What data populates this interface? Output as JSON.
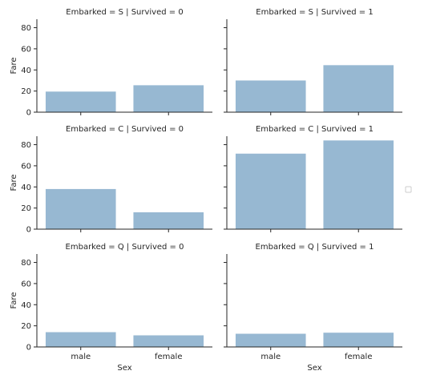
{
  "chart_data": [
    {
      "type": "bar",
      "title": "Embarked = S | Survived = 0",
      "categories": [
        "male",
        "female"
      ],
      "values": [
        19.5,
        25.5
      ],
      "ylabel": "Fare",
      "xlabel": "",
      "ylim": [
        0,
        88
      ],
      "yticks": [
        0,
        20,
        40,
        60,
        80
      ]
    },
    {
      "type": "bar",
      "title": "Embarked = S | Survived = 1",
      "categories": [
        "male",
        "female"
      ],
      "values": [
        30,
        44.5
      ],
      "ylabel": "",
      "xlabel": "",
      "ylim": [
        0,
        88
      ],
      "yticks": [
        0,
        20,
        40,
        60,
        80
      ]
    },
    {
      "type": "bar",
      "title": "Embarked = C | Survived = 0",
      "categories": [
        "male",
        "female"
      ],
      "values": [
        38,
        16
      ],
      "ylabel": "Fare",
      "xlabel": "",
      "ylim": [
        0,
        88
      ],
      "yticks": [
        0,
        20,
        40,
        60,
        80
      ]
    },
    {
      "type": "bar",
      "title": "Embarked = C | Survived = 1",
      "categories": [
        "male",
        "female"
      ],
      "values": [
        71.5,
        84
      ],
      "ylabel": "",
      "xlabel": "",
      "ylim": [
        0,
        88
      ],
      "yticks": [
        0,
        20,
        40,
        60,
        80
      ]
    },
    {
      "type": "bar",
      "title": "Embarked = Q | Survived = 0",
      "categories": [
        "male",
        "female"
      ],
      "values": [
        14,
        11
      ],
      "ylabel": "Fare",
      "xlabel": "Sex",
      "ylim": [
        0,
        88
      ],
      "yticks": [
        0,
        20,
        40,
        60,
        80
      ]
    },
    {
      "type": "bar",
      "title": "Embarked = Q | Survived = 1",
      "categories": [
        "male",
        "female"
      ],
      "values": [
        12.5,
        13.5
      ],
      "ylabel": "",
      "xlabel": "Sex",
      "ylim": [
        0,
        88
      ],
      "yticks": [
        0,
        20,
        40,
        60,
        80
      ]
    }
  ],
  "style": {
    "bar_color": "#97b8d2",
    "axis_color": "#262626"
  }
}
